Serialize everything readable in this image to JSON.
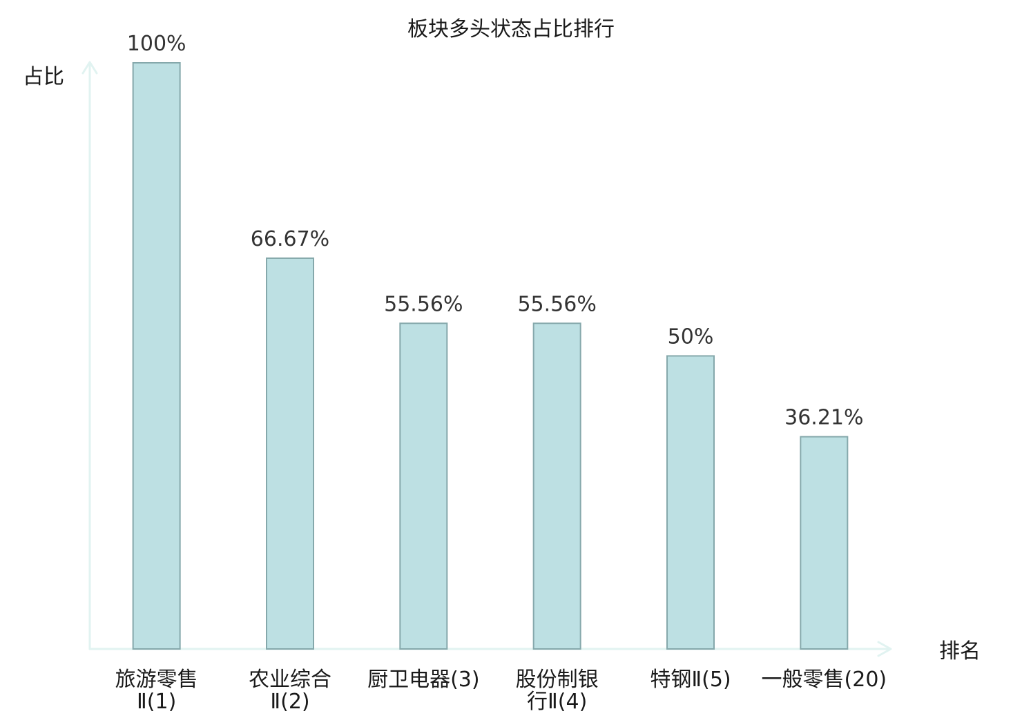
{
  "chart_data": {
    "type": "bar",
    "title": "板块多头状态占比排行",
    "xlabel": "排名",
    "ylabel": "占比",
    "ylim": [
      0,
      100
    ],
    "grid": false,
    "legend": "none",
    "categories": [
      [
        "旅游零售",
        "Ⅱ(1)"
      ],
      [
        "农业综合",
        "Ⅱ(2)"
      ],
      [
        "厨卫电器(3)"
      ],
      [
        "股份制银",
        "行Ⅱ(4)"
      ],
      [
        "特钢Ⅱ(5)"
      ],
      [
        "一般零售(20)"
      ]
    ],
    "highlight_index": 5,
    "values": [
      100,
      66.67,
      55.56,
      55.56,
      50,
      36.21
    ],
    "value_labels": [
      "100%",
      "66.67%",
      "55.56%",
      "55.56%",
      "50%",
      "36.21%"
    ]
  },
  "colors": {
    "bar_fill": "#bde0e3",
    "bar_stroke": "#85a8ab",
    "axis": "#e1f3f1",
    "text": "#1a1a1a",
    "value_text": "#333333",
    "highlight": "#e02020"
  }
}
